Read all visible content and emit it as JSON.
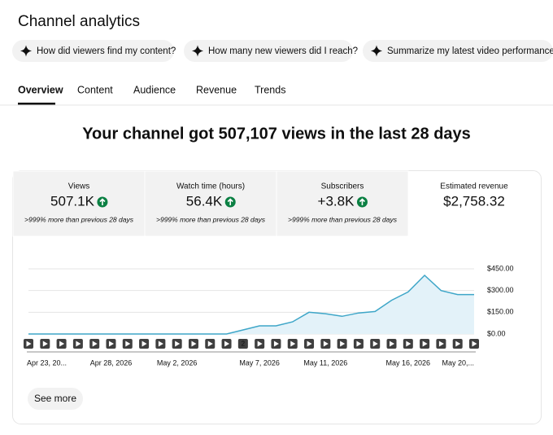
{
  "header": {
    "title": "Channel analytics"
  },
  "chips": [
    "How did viewers find my content?",
    "How many new viewers did I reach?",
    "Summarize my latest video performance"
  ],
  "tabs": [
    "Overview",
    "Content",
    "Audience",
    "Revenue",
    "Trends"
  ],
  "headline": "Your channel got 507,107 views in the last 28 days",
  "stats": [
    {
      "label": "Views",
      "value": "507.1K",
      "note": ">999% more than previous 28 days"
    },
    {
      "label": "Watch time (hours)",
      "value": "56.4K",
      "note": ">999% more than previous 28 days"
    },
    {
      "label": "Subscribers",
      "value": "+3.8K",
      "note": ">999% more than previous 28 days"
    },
    {
      "label": "Estimated revenue",
      "value": "$2,758.32"
    }
  ],
  "chart_data": {
    "type": "line",
    "color": "#3ea6c8",
    "categories": [
      "Apr 23, 20...",
      null,
      null,
      null,
      null,
      "Apr 28, 2026",
      null,
      null,
      null,
      "May 2, 2026",
      null,
      null,
      null,
      null,
      "May 7, 2026",
      null,
      null,
      null,
      "May 11, 2026",
      null,
      null,
      null,
      null,
      "May 16, 2026",
      null,
      null,
      null,
      "May 20,..."
    ],
    "values": [
      0,
      0,
      0,
      0,
      0,
      0,
      0,
      0,
      0,
      0,
      0,
      0,
      0,
      28,
      56,
      56,
      84,
      150,
      140,
      122,
      145,
      155,
      233,
      290,
      405,
      300,
      272,
      272
    ],
    "video_markers": [
      null,
      null,
      null,
      null,
      null,
      null,
      null,
      null,
      null,
      null,
      null,
      null,
      null,
      "2",
      null,
      null,
      null,
      null,
      null,
      null,
      null,
      null,
      null,
      null,
      null,
      null,
      null,
      null
    ],
    "ylim": [
      0,
      450
    ],
    "yticks": [
      {
        "value": 0,
        "label": "$0.00"
      },
      {
        "value": 150,
        "label": "$150.00"
      },
      {
        "value": 300,
        "label": "$300.00"
      },
      {
        "value": 450,
        "label": "$450.00"
      }
    ],
    "grid": true
  },
  "button": "See more"
}
